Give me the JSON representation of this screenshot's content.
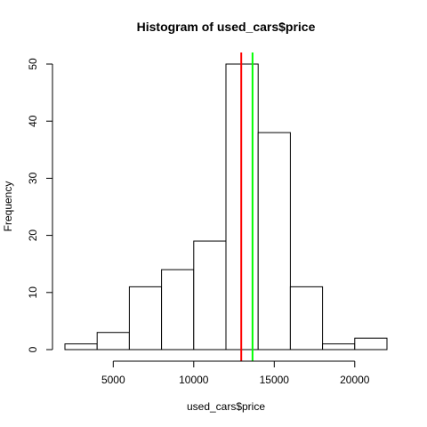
{
  "chart_data": {
    "type": "histogram",
    "title": "Histogram of used_cars$price",
    "xlabel": "used_cars$price",
    "ylabel": "Frequency",
    "bins": [
      {
        "start": 2000,
        "end": 4000,
        "count": 1
      },
      {
        "start": 4000,
        "end": 6000,
        "count": 3
      },
      {
        "start": 6000,
        "end": 8000,
        "count": 11
      },
      {
        "start": 8000,
        "end": 10000,
        "count": 14
      },
      {
        "start": 10000,
        "end": 12000,
        "count": 19
      },
      {
        "start": 12000,
        "end": 14000,
        "count": 50
      },
      {
        "start": 14000,
        "end": 16000,
        "count": 38
      },
      {
        "start": 16000,
        "end": 18000,
        "count": 11
      },
      {
        "start": 18000,
        "end": 20000,
        "count": 1
      },
      {
        "start": 20000,
        "end": 22000,
        "count": 2
      }
    ],
    "xlim": [
      2000,
      22000
    ],
    "ylim": [
      0,
      50
    ],
    "x_ticks": [
      {
        "value": 5000,
        "label": "5000"
      },
      {
        "value": 10000,
        "label": "10000"
      },
      {
        "value": 15000,
        "label": "15000"
      },
      {
        "value": 20000,
        "label": "20000"
      }
    ],
    "y_ticks": [
      {
        "value": 0,
        "label": "0"
      },
      {
        "value": 10,
        "label": "10"
      },
      {
        "value": 20,
        "label": "20"
      },
      {
        "value": 30,
        "label": "30"
      },
      {
        "value": 40,
        "label": "40"
      },
      {
        "value": 50,
        "label": "50"
      }
    ],
    "reference_lines": [
      {
        "x": 12950,
        "color": "#ff0000"
      },
      {
        "x": 13650,
        "color": "#00ff00"
      }
    ],
    "bar_fill": "#ffffff",
    "bar_stroke": "#000000",
    "grid": false,
    "legend": "none"
  }
}
